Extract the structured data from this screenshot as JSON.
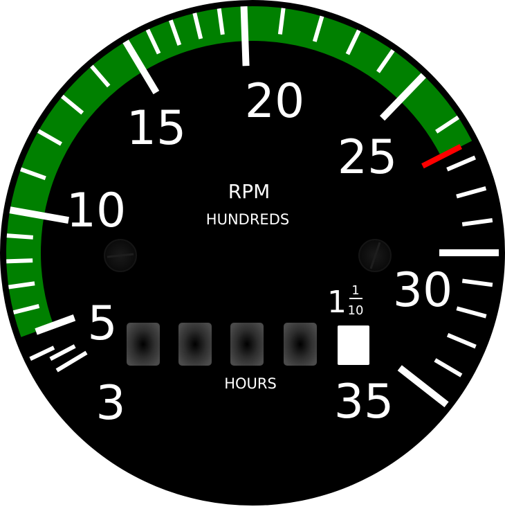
{
  "title": "RPM",
  "subtitle": "HUNDREDS",
  "hours_label": "HOURS",
  "tenths_label": {
    "whole": "1",
    "num": "1",
    "den": "10"
  },
  "scale": {
    "min": 3,
    "max": 35,
    "major_labels": [
      "3",
      "5",
      "10",
      "15",
      "20",
      "25",
      "30",
      "35"
    ],
    "green_arc_range": [
      5,
      26.5
    ],
    "redline": 26.5
  },
  "hour_meter": {
    "digits": [
      "",
      "",
      "",
      ""
    ],
    "tenths": ""
  },
  "colors": {
    "bezel": "#000000",
    "face": "#000000",
    "green_arc": "#008000",
    "redline": "#ff0000",
    "markings": "#ffffff",
    "counter_wheel": "#3a3a3a"
  },
  "icons": [
    "screw-icon",
    "screw-icon"
  ]
}
